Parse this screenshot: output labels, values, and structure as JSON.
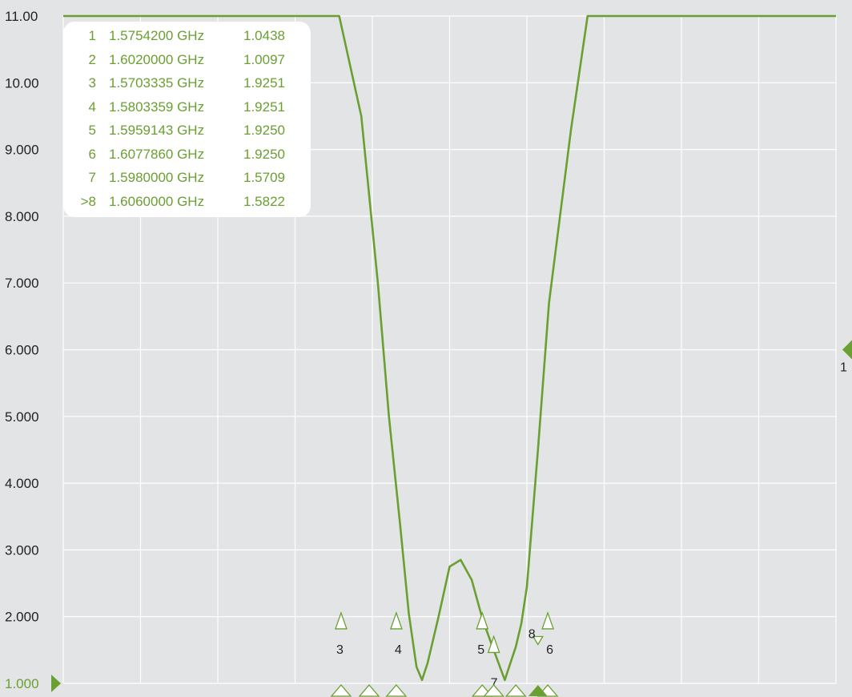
{
  "chart_data": {
    "type": "line",
    "title": "",
    "xlabel": "",
    "ylabel": "",
    "ylim": [
      1.0,
      11.0
    ],
    "xlim": [
      1.52,
      1.66
    ],
    "x_unit": "GHz",
    "y_ticks": [
      "11.00",
      "10.00",
      "9.000",
      "8.000",
      "7.000",
      "6.000",
      "5.000",
      "4.000",
      "3.000",
      "2.000",
      "1.000"
    ],
    "grid": true,
    "reference_level": "1.000",
    "reference_marker_label": "1",
    "series": [
      {
        "color": "#6a9f32",
        "x": [
          1.52,
          1.57,
          1.574,
          1.577,
          1.579,
          1.581,
          1.5826,
          1.584,
          1.585,
          1.586,
          1.588,
          1.59,
          1.592,
          1.594,
          1.596,
          1.598,
          1.6,
          1.602,
          1.603,
          1.604,
          1.606,
          1.608,
          1.612,
          1.615,
          1.624,
          1.66
        ],
        "y": [
          11.0,
          11.0,
          9.5,
          7.0,
          5.0,
          3.4,
          2.05,
          1.25,
          1.05,
          1.3,
          2.0,
          2.75,
          2.85,
          2.55,
          1.95,
          1.5,
          1.05,
          1.55,
          1.9,
          2.45,
          4.5,
          6.7,
          9.3,
          11.0,
          11.0,
          11.0
        ]
      }
    ],
    "markers": [
      {
        "id": "1",
        "freq": "1.5754200 GHz",
        "value": "1.0438",
        "x": 1.57542,
        "y": 1.0438
      },
      {
        "id": "2",
        "freq": "1.6020000 GHz",
        "value": "1.0097",
        "x": 1.602,
        "y": 1.0097
      },
      {
        "id": "3",
        "freq": "1.5703335 GHz",
        "value": "1.9251",
        "x": 1.5703335,
        "y": 1.9251
      },
      {
        "id": "4",
        "freq": "1.5803359 GHz",
        "value": "1.9251",
        "x": 1.5803359,
        "y": 1.9251
      },
      {
        "id": "5",
        "freq": "1.5959143 GHz",
        "value": "1.9250",
        "x": 1.5959143,
        "y": 1.925
      },
      {
        "id": "6",
        "freq": "1.6077860 GHz",
        "value": "1.9250",
        "x": 1.607786,
        "y": 1.925
      },
      {
        "id": "7",
        "freq": "1.5980000 GHz",
        "value": "1.5709",
        "x": 1.598,
        "y": 1.5709
      },
      {
        "id": ">8",
        "freq": "1.6060000 GHz",
        "value": "1.5822",
        "x": 1.606,
        "y": 1.5822
      }
    ],
    "legend_placement": "top-left"
  }
}
